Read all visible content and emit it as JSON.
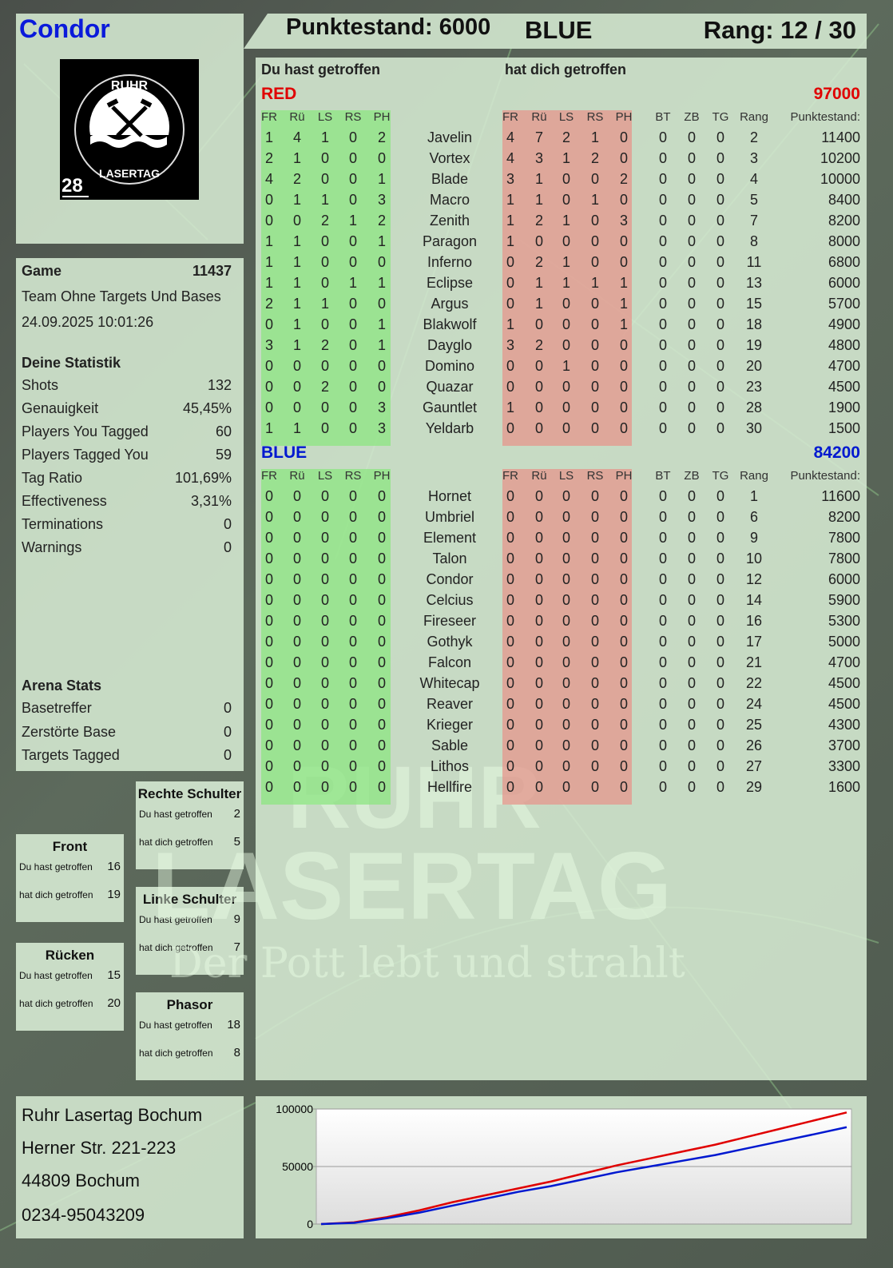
{
  "player": {
    "name": "Condor",
    "logo_text": "RUHR LASERTAG",
    "logo_number": "28"
  },
  "header": {
    "score_label": "Punktestand: 6000",
    "team": "BLUE",
    "rank": "Rang: 12 / 30"
  },
  "colors": {
    "red": "#e00000",
    "blue": "#0018d0",
    "player_name": "#0a1adb"
  },
  "game": {
    "label": "Game",
    "id": "11437",
    "mode": "Team Ohne Targets Und Bases",
    "datetime": "24.09.2025 10:01:26"
  },
  "stats": {
    "title": "Deine Statistik",
    "items": [
      {
        "label": "Shots",
        "value": "132"
      },
      {
        "label": "Genauigkeit",
        "value": "45,45%"
      },
      {
        "label": "Players You Tagged",
        "value": "60"
      },
      {
        "label": "Players Tagged You",
        "value": "59"
      },
      {
        "label": "Tag Ratio",
        "value": "101,69%"
      },
      {
        "label": "Effectiveness",
        "value": "3,31%"
      },
      {
        "label": "Terminations",
        "value": "0"
      },
      {
        "label": "Warnings",
        "value": "0"
      }
    ]
  },
  "arena": {
    "title": "Arena Stats",
    "items": [
      {
        "label": "Basetreffer",
        "value": "0"
      },
      {
        "label": "Zerstörte Base",
        "value": "0"
      },
      {
        "label": "Targets Tagged",
        "value": "0"
      }
    ]
  },
  "zones": [
    {
      "name": "Rechte Schulter",
      "you_hit_label": "Du hast getroffen",
      "you_hit": "2",
      "hit_you_label": "hat dich getroffen",
      "hit_you": "5"
    },
    {
      "name": "Front",
      "you_hit_label": "Du hast getroffen",
      "you_hit": "16",
      "hit_you_label": "hat dich getroffen",
      "hit_you": "19"
    },
    {
      "name": "Linke Schulter",
      "you_hit_label": "Du hast getroffen",
      "you_hit": "9",
      "hit_you_label": "hat dich getroffen",
      "hit_you": "7"
    },
    {
      "name": "Rücken",
      "you_hit_label": "Du hast getroffen",
      "you_hit": "15",
      "hit_you_label": "hat dich getroffen",
      "hit_you": "20"
    },
    {
      "name": "Phasor",
      "you_hit_label": "Du hast getroffen",
      "you_hit": "18",
      "hit_you_label": "hat dich getroffen",
      "hit_you": "8"
    }
  ],
  "address": {
    "line1": "Ruhr Lasertag Bochum",
    "line2": "Herner Str. 221-223",
    "line3": "44809 Bochum",
    "line4": "0234-95043209"
  },
  "table": {
    "you_hit_title": "Du hast getroffen",
    "hit_you_title": "hat dich getroffen",
    "hit_cols": [
      "FR",
      "Rü",
      "LS",
      "RS",
      "PH"
    ],
    "extra_cols": [
      "BT",
      "ZB",
      "TG",
      "Rang",
      "Punktestand:"
    ],
    "teams": [
      {
        "name": "RED",
        "total": "97000",
        "rows": [
          [
            "Javelin",
            [
              1,
              4,
              1,
              0,
              2
            ],
            [
              4,
              7,
              2,
              1,
              0
            ],
            [
              0,
              0,
              0
            ],
            "2",
            "11400"
          ],
          [
            "Vortex",
            [
              2,
              1,
              0,
              0,
              0
            ],
            [
              4,
              3,
              1,
              2,
              0
            ],
            [
              0,
              0,
              0
            ],
            "3",
            "10200"
          ],
          [
            "Blade",
            [
              4,
              2,
              0,
              0,
              1
            ],
            [
              3,
              1,
              0,
              0,
              2
            ],
            [
              0,
              0,
              0
            ],
            "4",
            "10000"
          ],
          [
            "Macro",
            [
              0,
              1,
              1,
              0,
              3
            ],
            [
              1,
              1,
              0,
              1,
              0
            ],
            [
              0,
              0,
              0
            ],
            "5",
            "8400"
          ],
          [
            "Zenith",
            [
              0,
              0,
              2,
              1,
              2
            ],
            [
              1,
              2,
              1,
              0,
              3
            ],
            [
              0,
              0,
              0
            ],
            "7",
            "8200"
          ],
          [
            "Paragon",
            [
              1,
              1,
              0,
              0,
              1
            ],
            [
              1,
              0,
              0,
              0,
              0
            ],
            [
              0,
              0,
              0
            ],
            "8",
            "8000"
          ],
          [
            "Inferno",
            [
              1,
              1,
              0,
              0,
              0
            ],
            [
              0,
              2,
              1,
              0,
              0
            ],
            [
              0,
              0,
              0
            ],
            "11",
            "6800"
          ],
          [
            "Eclipse",
            [
              1,
              1,
              0,
              1,
              1
            ],
            [
              0,
              1,
              1,
              1,
              1
            ],
            [
              0,
              0,
              0
            ],
            "13",
            "6000"
          ],
          [
            "Argus",
            [
              2,
              1,
              1,
              0,
              0
            ],
            [
              0,
              1,
              0,
              0,
              1
            ],
            [
              0,
              0,
              0
            ],
            "15",
            "5700"
          ],
          [
            "Blakwolf",
            [
              0,
              1,
              0,
              0,
              1
            ],
            [
              1,
              0,
              0,
              0,
              1
            ],
            [
              0,
              0,
              0
            ],
            "18",
            "4900"
          ],
          [
            "Dayglo",
            [
              3,
              1,
              2,
              0,
              1
            ],
            [
              3,
              2,
              0,
              0,
              0
            ],
            [
              0,
              0,
              0
            ],
            "19",
            "4800"
          ],
          [
            "Domino",
            [
              0,
              0,
              0,
              0,
              0
            ],
            [
              0,
              0,
              1,
              0,
              0
            ],
            [
              0,
              0,
              0
            ],
            "20",
            "4700"
          ],
          [
            "Quazar",
            [
              0,
              0,
              2,
              0,
              0
            ],
            [
              0,
              0,
              0,
              0,
              0
            ],
            [
              0,
              0,
              0
            ],
            "23",
            "4500"
          ],
          [
            "Gauntlet",
            [
              0,
              0,
              0,
              0,
              3
            ],
            [
              1,
              0,
              0,
              0,
              0
            ],
            [
              0,
              0,
              0
            ],
            "28",
            "1900"
          ],
          [
            "Yeldarb",
            [
              1,
              1,
              0,
              0,
              3
            ],
            [
              0,
              0,
              0,
              0,
              0
            ],
            [
              0,
              0,
              0
            ],
            "30",
            "1500"
          ]
        ]
      },
      {
        "name": "BLUE",
        "total": "84200",
        "rows": [
          [
            "Hornet",
            [
              0,
              0,
              0,
              0,
              0
            ],
            [
              0,
              0,
              0,
              0,
              0
            ],
            [
              0,
              0,
              0
            ],
            "1",
            "11600"
          ],
          [
            "Umbriel",
            [
              0,
              0,
              0,
              0,
              0
            ],
            [
              0,
              0,
              0,
              0,
              0
            ],
            [
              0,
              0,
              0
            ],
            "6",
            "8200"
          ],
          [
            "Element",
            [
              0,
              0,
              0,
              0,
              0
            ],
            [
              0,
              0,
              0,
              0,
              0
            ],
            [
              0,
              0,
              0
            ],
            "9",
            "7800"
          ],
          [
            "Talon",
            [
              0,
              0,
              0,
              0,
              0
            ],
            [
              0,
              0,
              0,
              0,
              0
            ],
            [
              0,
              0,
              0
            ],
            "10",
            "7800"
          ],
          [
            "Condor",
            [
              0,
              0,
              0,
              0,
              0
            ],
            [
              0,
              0,
              0,
              0,
              0
            ],
            [
              0,
              0,
              0
            ],
            "12",
            "6000"
          ],
          [
            "Celcius",
            [
              0,
              0,
              0,
              0,
              0
            ],
            [
              0,
              0,
              0,
              0,
              0
            ],
            [
              0,
              0,
              0
            ],
            "14",
            "5900"
          ],
          [
            "Fireseer",
            [
              0,
              0,
              0,
              0,
              0
            ],
            [
              0,
              0,
              0,
              0,
              0
            ],
            [
              0,
              0,
              0
            ],
            "16",
            "5300"
          ],
          [
            "Gothyk",
            [
              0,
              0,
              0,
              0,
              0
            ],
            [
              0,
              0,
              0,
              0,
              0
            ],
            [
              0,
              0,
              0
            ],
            "17",
            "5000"
          ],
          [
            "Falcon",
            [
              0,
              0,
              0,
              0,
              0
            ],
            [
              0,
              0,
              0,
              0,
              0
            ],
            [
              0,
              0,
              0
            ],
            "21",
            "4700"
          ],
          [
            "Whitecap",
            [
              0,
              0,
              0,
              0,
              0
            ],
            [
              0,
              0,
              0,
              0,
              0
            ],
            [
              0,
              0,
              0
            ],
            "22",
            "4500"
          ],
          [
            "Reaver",
            [
              0,
              0,
              0,
              0,
              0
            ],
            [
              0,
              0,
              0,
              0,
              0
            ],
            [
              0,
              0,
              0
            ],
            "24",
            "4500"
          ],
          [
            "Krieger",
            [
              0,
              0,
              0,
              0,
              0
            ],
            [
              0,
              0,
              0,
              0,
              0
            ],
            [
              0,
              0,
              0
            ],
            "25",
            "4300"
          ],
          [
            "Sable",
            [
              0,
              0,
              0,
              0,
              0
            ],
            [
              0,
              0,
              0,
              0,
              0
            ],
            [
              0,
              0,
              0
            ],
            "26",
            "3700"
          ],
          [
            "Lithos",
            [
              0,
              0,
              0,
              0,
              0
            ],
            [
              0,
              0,
              0,
              0,
              0
            ],
            [
              0,
              0,
              0
            ],
            "27",
            "3300"
          ],
          [
            "Hellfire",
            [
              0,
              0,
              0,
              0,
              0
            ],
            [
              0,
              0,
              0,
              0,
              0
            ],
            [
              0,
              0,
              0
            ],
            "29",
            "1600"
          ]
        ]
      }
    ]
  },
  "watermark": {
    "line1": "RUHR",
    "line2": "LASERTAG",
    "line3": "Der Pott lebt und strahlt"
  },
  "chart_data": {
    "type": "line",
    "ylim": [
      0,
      100000
    ],
    "yticks": [
      "0",
      "50000",
      "100000"
    ],
    "series": [
      {
        "color": "#e00000",
        "values": [
          0,
          1500,
          6000,
          12000,
          19000,
          25000,
          31000,
          37000,
          44000,
          51000,
          57000,
          63000,
          69000,
          76000,
          83000,
          90000,
          97000
        ]
      },
      {
        "color": "#0018d0",
        "values": [
          0,
          1000,
          5000,
          10000,
          16000,
          22000,
          28000,
          33000,
          39000,
          45000,
          50000,
          55000,
          60000,
          66000,
          72000,
          78000,
          84200
        ]
      }
    ]
  }
}
